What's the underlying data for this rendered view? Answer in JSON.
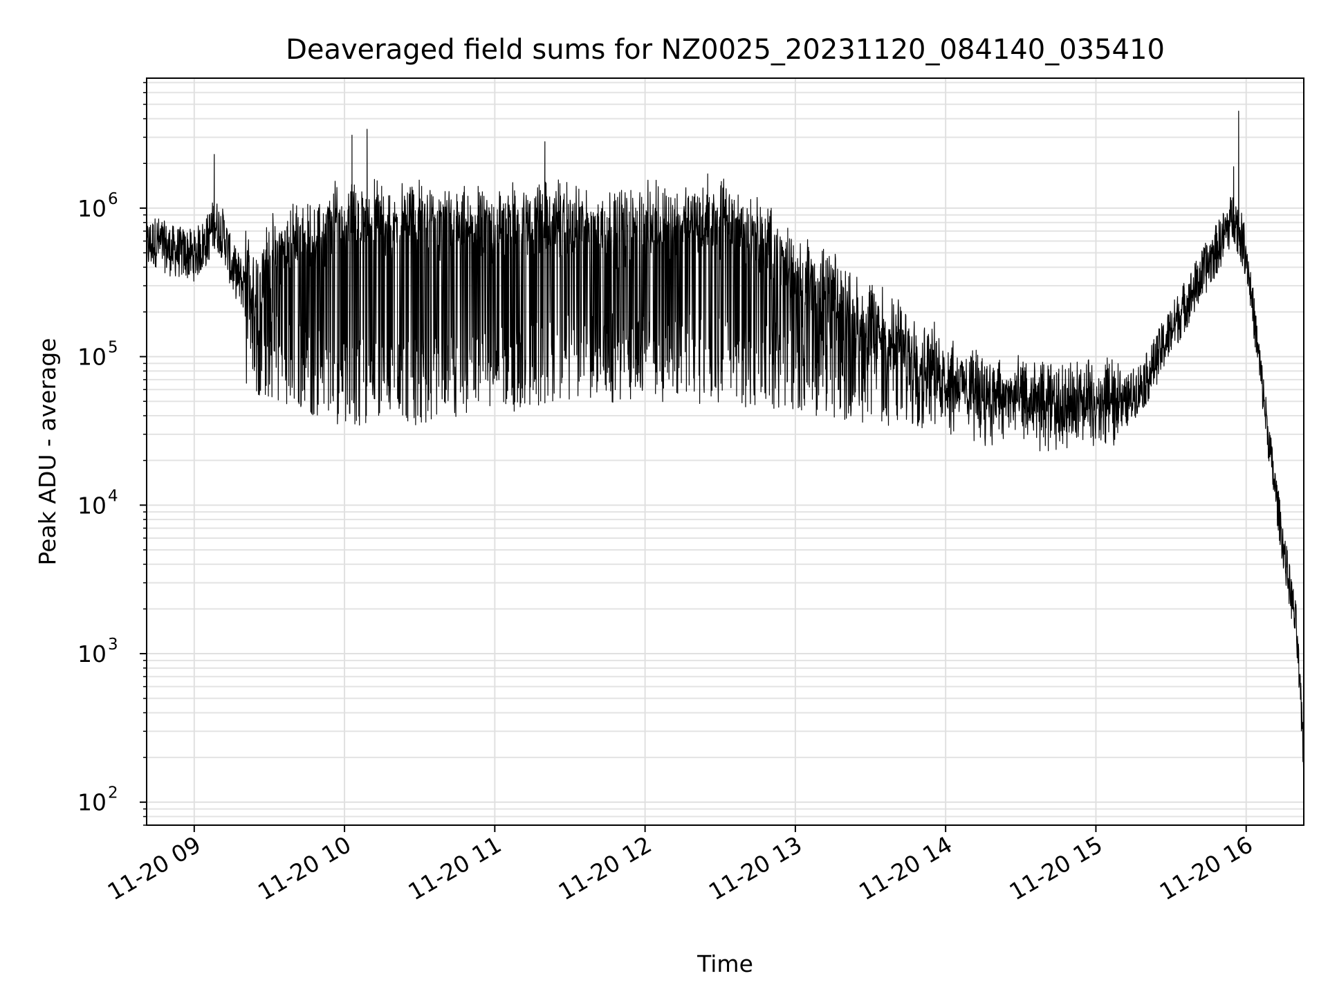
{
  "chart_data": {
    "type": "line",
    "title": "Deaveraged field sums for NZ0025_20231120_084140_035410",
    "xlabel": "Time",
    "ylabel": "Peak ADU - average",
    "yscale": "log",
    "grid": "both-major-and-minor",
    "legend": "none",
    "line_color": "#000000",
    "xlim": [
      "2023-11-20 08:41",
      "2023-11-20 16:23"
    ],
    "ylim": [
      70,
      7500000
    ],
    "x_ticks": [
      {
        "t": "2023-11-20 09:00",
        "label": "11-20 09"
      },
      {
        "t": "2023-11-20 10:00",
        "label": "11-20 10"
      },
      {
        "t": "2023-11-20 11:00",
        "label": "11-20 11"
      },
      {
        "t": "2023-11-20 12:00",
        "label": "11-20 12"
      },
      {
        "t": "2023-11-20 13:00",
        "label": "11-20 13"
      },
      {
        "t": "2023-11-20 14:00",
        "label": "11-20 14"
      },
      {
        "t": "2023-11-20 15:00",
        "label": "11-20 15"
      },
      {
        "t": "2023-11-20 16:00",
        "label": "11-20 16"
      }
    ],
    "y_ticks": [
      {
        "value": 100,
        "base": "10",
        "exp": "2"
      },
      {
        "value": 1000,
        "base": "10",
        "exp": "3"
      },
      {
        "value": 10000,
        "base": "10",
        "exp": "4"
      },
      {
        "value": 100000,
        "base": "10",
        "exp": "5"
      },
      {
        "value": 1000000,
        "base": "10",
        "exp": "6"
      }
    ],
    "series": [
      {
        "x": [
          "2023-11-20 08:41",
          "2023-11-20 08:45",
          "2023-11-20 08:50",
          "2023-11-20 08:55",
          "2023-11-20 09:00",
          "2023-11-20 09:05",
          "2023-11-20 09:08",
          "2023-11-20 09:12",
          "2023-11-20 09:15",
          "2023-11-20 09:20",
          "2023-11-20 09:25",
          "2023-11-20 09:30",
          "2023-11-20 09:40",
          "2023-11-20 09:50",
          "2023-11-20 10:00",
          "2023-11-20 10:10",
          "2023-11-20 10:20",
          "2023-11-20 10:30",
          "2023-11-20 10:45",
          "2023-11-20 11:00",
          "2023-11-20 11:15",
          "2023-11-20 11:30",
          "2023-11-20 11:45",
          "2023-11-20 12:00",
          "2023-11-20 12:15",
          "2023-11-20 12:30",
          "2023-11-20 12:45",
          "2023-11-20 13:00",
          "2023-11-20 13:15",
          "2023-11-20 13:30",
          "2023-11-20 13:45",
          "2023-11-20 14:00",
          "2023-11-20 14:15",
          "2023-11-20 14:30",
          "2023-11-20 14:45",
          "2023-11-20 15:00",
          "2023-11-20 15:10",
          "2023-11-20 15:20",
          "2023-11-20 15:30",
          "2023-11-20 15:40",
          "2023-11-20 15:50",
          "2023-11-20 15:55",
          "2023-11-20 16:00",
          "2023-11-20 16:05",
          "2023-11-20 16:10",
          "2023-11-20 16:15",
          "2023-11-20 16:20",
          "2023-11-20 16:23"
        ],
        "y": [
          550000,
          600000,
          520000,
          500000,
          480000,
          600000,
          800000,
          650000,
          400000,
          300000,
          220000,
          350000,
          450000,
          500000,
          700000,
          650000,
          600000,
          650000,
          550000,
          600000,
          650000,
          600000,
          550000,
          600000,
          620000,
          650000,
          500000,
          300000,
          200000,
          130000,
          90000,
          60000,
          45000,
          40000,
          38000,
          35000,
          45000,
          70000,
          150000,
          300000,
          600000,
          900000,
          500000,
          100000,
          20000,
          5000,
          1500,
          200
        ],
        "x_min": [
          "2023-11-20 09:25",
          "2023-11-20 09:58",
          "2023-11-20 10:48",
          "2023-11-20 11:25",
          "2023-11-20 12:05",
          "2023-11-20 12:45",
          "2023-11-20 13:30",
          "2023-11-20 14:00",
          "2023-11-20 14:30",
          "2023-11-20 15:00"
        ],
        "y_min": [
          55000,
          34000,
          35000,
          48000,
          50000,
          45000,
          35000,
          30000,
          20000,
          25000
        ],
        "x_peaks": [
          "2023-11-20 09:08",
          "2023-11-20 10:03",
          "2023-11-20 10:09",
          "2023-11-20 11:20",
          "2023-11-20 12:25",
          "2023-11-20 15:55",
          "2023-11-20 15:57"
        ],
        "y_peaks": [
          2300000,
          3100000,
          3400000,
          2800000,
          1700000,
          1900000,
          4500000
        ]
      }
    ]
  }
}
